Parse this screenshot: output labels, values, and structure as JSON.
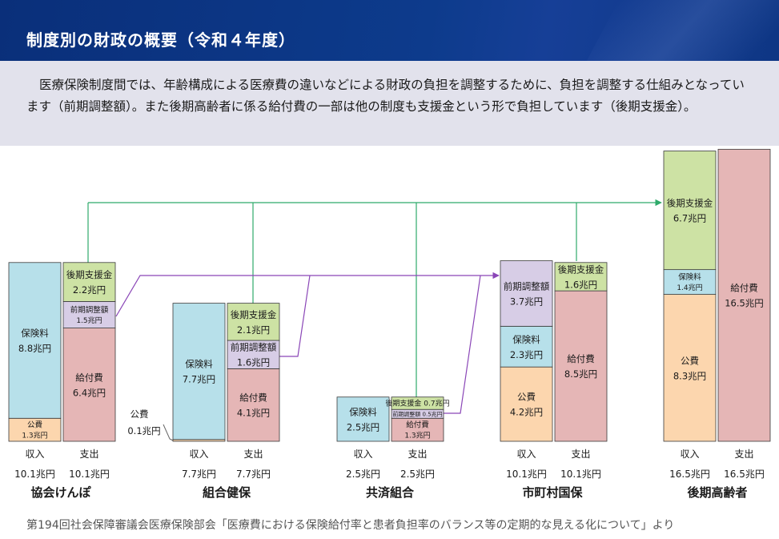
{
  "page": {
    "title": "制度別の財政の概要（令和４年度）",
    "intro": "医療保険制度間では、年齢構成による医療費の違いなどによる財政の負担を調整するために、負担を調整する仕組みとなっています（前期調整額）。また後期高齢者に係る給付費の一部は他の制度も支援金という形で負担しています（後期支援金）。",
    "source": "第194回社会保障審議会医療保険部会「医療費における保険給付率と患者負担率のバランス等の定期的な見える化について」より"
  },
  "colors": {
    "hokenryo": "#b7e0ea",
    "kohi": "#fcd6ae",
    "kyufuhi": "#e5b6b6",
    "shienkin": "#cde2a4",
    "chosei": "#d7cde6",
    "green_arrow": "#2eaa6a",
    "purple_arrow": "#8a46b7"
  },
  "systems": [
    {
      "name": "協会けんぽ",
      "income_label": "収入",
      "income_total": "10.1兆円",
      "expense_label": "支出",
      "expense_total": "10.1兆円",
      "income": [
        {
          "label": "保険料",
          "amount": "8.8兆円",
          "kind": "hokenryo"
        },
        {
          "label": "公費",
          "amount": "1.3兆円",
          "kind": "kohi"
        }
      ],
      "expense": [
        {
          "label": "後期支援金",
          "amount": "2.2兆円",
          "kind": "shienkin"
        },
        {
          "label": "前期調整額",
          "amount": "1.5兆円",
          "kind": "chosei"
        },
        {
          "label": "給付費",
          "amount": "6.4兆円",
          "kind": "kyufuhi"
        }
      ]
    },
    {
      "name": "組合健保",
      "income_label": "収入",
      "income_total": "7.7兆円",
      "expense_label": "支出",
      "expense_total": "7.7兆円",
      "income": [
        {
          "label": "保険料",
          "amount": "7.7兆円",
          "kind": "hokenryo"
        },
        {
          "label": "公費",
          "amount": "0.1兆円",
          "kind": "kohi"
        }
      ],
      "expense": [
        {
          "label": "後期支援金",
          "amount": "2.1兆円",
          "kind": "shienkin"
        },
        {
          "label": "前期調整額",
          "amount": "1.6兆円",
          "kind": "chosei"
        },
        {
          "label": "給付費",
          "amount": "4.1兆円",
          "kind": "kyufuhi"
        }
      ]
    },
    {
      "name": "共済組合",
      "income_label": "収入",
      "income_total": "2.5兆円",
      "expense_label": "支出",
      "expense_total": "2.5兆円",
      "income": [
        {
          "label": "保険料",
          "amount": "2.5兆円",
          "kind": "hokenryo"
        }
      ],
      "expense": [
        {
          "label": "後期支援金",
          "amount": "0.7兆円",
          "kind": "shienkin"
        },
        {
          "label": "前期調整額",
          "amount": "0.5兆円",
          "kind": "chosei"
        },
        {
          "label": "給付費",
          "amount": "1.3兆円",
          "kind": "kyufuhi"
        }
      ]
    },
    {
      "name": "市町村国保",
      "income_label": "収入",
      "income_total": "10.1兆円",
      "expense_label": "支出",
      "expense_total": "10.1兆円",
      "income": [
        {
          "label": "前期調整額",
          "amount": "3.7兆円",
          "kind": "chosei"
        },
        {
          "label": "保険料",
          "amount": "2.3兆円",
          "kind": "hokenryo"
        },
        {
          "label": "公費",
          "amount": "4.2兆円",
          "kind": "kohi"
        }
      ],
      "expense": [
        {
          "label": "後期支援金",
          "amount": "1.6兆円",
          "kind": "shienkin"
        },
        {
          "label": "給付費",
          "amount": "8.5兆円",
          "kind": "kyufuhi"
        }
      ]
    },
    {
      "name": "後期高齢者",
      "income_label": "収入",
      "income_total": "16.5兆円",
      "expense_label": "支出",
      "expense_total": "16.5兆円",
      "income": [
        {
          "label": "後期支援金",
          "amount": "6.7兆円",
          "kind": "shienkin"
        },
        {
          "label": "保険料",
          "amount": "1.4兆円",
          "kind": "hokenryo"
        },
        {
          "label": "公費",
          "amount": "8.3兆円",
          "kind": "kohi"
        }
      ],
      "expense": [
        {
          "label": "給付費",
          "amount": "16.5兆円",
          "kind": "kyufuhi"
        }
      ]
    }
  ]
}
